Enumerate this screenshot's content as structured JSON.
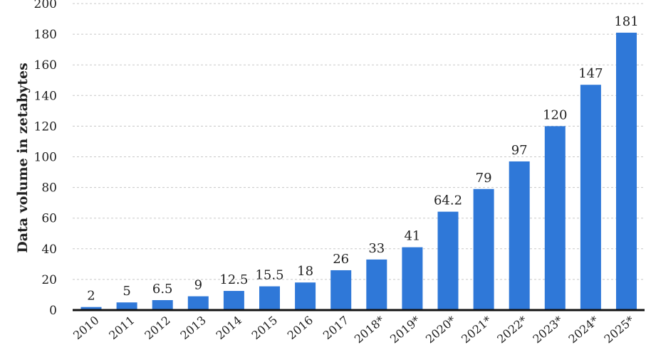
{
  "chart_data": {
    "type": "bar",
    "title": "",
    "xlabel": "",
    "ylabel": "Data volume in zetabytes",
    "ylim": [
      0,
      200
    ],
    "yticks": [
      0,
      20,
      40,
      60,
      80,
      100,
      120,
      140,
      160,
      180,
      200
    ],
    "grid": true,
    "categories": [
      "2010",
      "2011",
      "2012",
      "2013",
      "2014",
      "2015",
      "2016",
      "2017",
      "2018*",
      "2019*",
      "2020*",
      "2021*",
      "2022*",
      "2023*",
      "2024*",
      "2025*"
    ],
    "values": [
      2,
      5,
      6.5,
      9,
      12.5,
      15.5,
      18,
      26,
      33,
      41,
      64.2,
      79,
      97,
      120,
      147,
      181
    ],
    "value_labels": [
      "2",
      "5",
      "6.5",
      "9",
      "12.5",
      "15.5",
      "18",
      "26",
      "33",
      "41",
      "64.2",
      "79",
      "97",
      "120",
      "147",
      "181"
    ],
    "colors": {
      "bar": "#2f78d8",
      "grid": "#c8c8c8",
      "axis": "#111111"
    }
  }
}
